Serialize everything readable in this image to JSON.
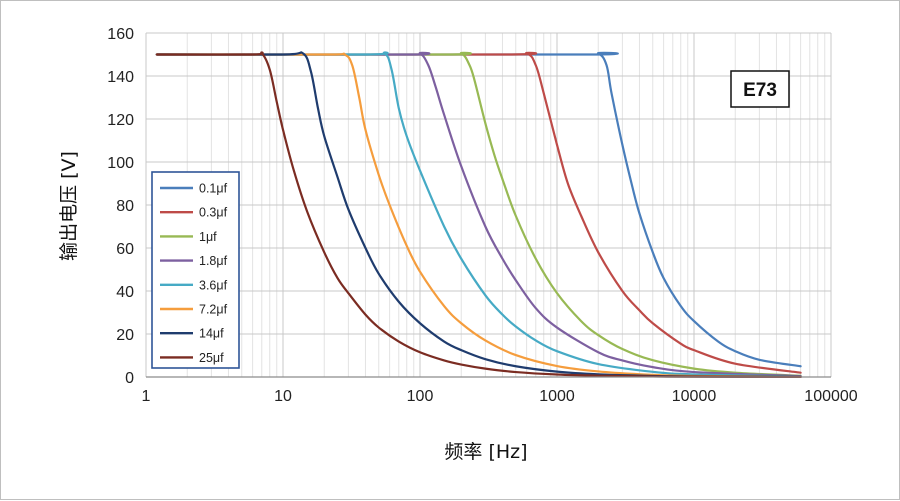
{
  "chart_data": {
    "type": "line",
    "title": "",
    "badge": "E73",
    "xlabel": "频率 [Hz]",
    "ylabel": "输出电压 [V]",
    "xscale": "log",
    "xlim": [
      1,
      100000
    ],
    "ylim": [
      0,
      160
    ],
    "xticks": [
      "1",
      "10",
      "100",
      "1000",
      "10000",
      "100000"
    ],
    "yticks": [
      "0",
      "20",
      "40",
      "60",
      "80",
      "100",
      "120",
      "140",
      "160"
    ],
    "grid": true,
    "legend_position": "left",
    "series": [
      {
        "name": "0.1μf",
        "color": "#4a7ebb",
        "x": [
          1.2,
          1500,
          2000,
          2300,
          2500,
          3000,
          3500,
          4000,
          5000,
          6000,
          8000,
          10000,
          15000,
          20000,
          30000,
          60000
        ],
        "y": [
          150,
          150,
          150.5,
          145,
          132,
          108,
          90,
          76,
          58,
          46,
          33,
          26,
          16.5,
          12,
          8,
          5
        ]
      },
      {
        "name": "0.3μf",
        "color": "#be4b48",
        "x": [
          1.2,
          400,
          600,
          700,
          800,
          1000,
          1200,
          1500,
          2000,
          3000,
          4000,
          5000,
          8000,
          10000,
          20000,
          60000
        ],
        "y": [
          150,
          150,
          150.5,
          145,
          132,
          108,
          90,
          75,
          58,
          40,
          31,
          25,
          15.5,
          12.5,
          6.2,
          2
        ]
      },
      {
        "name": "1μf",
        "color": "#98b954",
        "x": [
          1.2,
          150,
          200,
          230,
          250,
          300,
          350,
          400,
          500,
          700,
          1000,
          1500,
          2000,
          3000,
          5000,
          10000,
          20000,
          60000
        ],
        "y": [
          150,
          150,
          150.5,
          145,
          138,
          118,
          103,
          92,
          75,
          55,
          39,
          26,
          19.5,
          13,
          7.8,
          3.9,
          2,
          0.6
        ]
      },
      {
        "name": "1.8μf",
        "color": "#7d60a0",
        "x": [
          1.2,
          80,
          100,
          115,
          130,
          150,
          200,
          300,
          400,
          500,
          700,
          1000,
          2000,
          3000,
          5000,
          10000,
          60000
        ],
        "y": [
          150,
          150,
          150.5,
          145,
          135,
          122,
          98,
          70,
          55,
          45,
          32,
          23,
          11.5,
          7.7,
          4.6,
          2.3,
          0.4
        ]
      },
      {
        "name": "3.6μf",
        "color": "#46aac5",
        "x": [
          1.2,
          40,
          55,
          62,
          70,
          80,
          100,
          150,
          200,
          300,
          400,
          500,
          700,
          1000,
          2000,
          5000,
          10000,
          60000
        ],
        "y": [
          150,
          150,
          150.5,
          143,
          125,
          112,
          96,
          70,
          55,
          38,
          29,
          23.5,
          17,
          12,
          6,
          2.4,
          1.2,
          0.2
        ]
      },
      {
        "name": "7.2μf",
        "color": "#f59d3d",
        "x": [
          1.2,
          20,
          28,
          32,
          36,
          40,
          50,
          60,
          80,
          100,
          150,
          200,
          300,
          500,
          1000,
          2000,
          5000,
          10000,
          60000
        ],
        "y": [
          150,
          150,
          150,
          145,
          130,
          115,
          94,
          80,
          61,
          49,
          33,
          25,
          17,
          10.2,
          5.1,
          2.6,
          1,
          0.5,
          0.1
        ]
      },
      {
        "name": "14μf",
        "color": "#1f3c6e",
        "x": [
          1.2,
          10,
          14,
          16,
          18,
          20,
          25,
          30,
          40,
          50,
          70,
          100,
          150,
          200,
          300,
          500,
          1000,
          2000,
          5000,
          10000,
          60000
        ],
        "y": [
          150,
          150,
          150.5,
          142,
          125,
          112,
          93,
          78,
          60,
          48,
          35,
          25,
          16.5,
          12.5,
          8.3,
          5,
          2.5,
          1.25,
          0.5,
          0.25,
          0.05
        ]
      },
      {
        "name": "25μf",
        "color": "#7b2c22",
        "x": [
          1.2,
          6,
          7,
          8,
          9,
          10,
          12,
          15,
          20,
          25,
          30,
          40,
          50,
          70,
          100,
          150,
          200,
          300,
          500,
          1000,
          2000,
          5000,
          10000,
          60000
        ],
        "y": [
          150,
          150,
          150.5,
          143,
          128,
          115,
          96,
          77,
          58,
          46,
          39,
          29,
          23,
          16.5,
          11.5,
          7.7,
          5.8,
          3.9,
          2.3,
          1.15,
          0.6,
          0.25,
          0.12,
          0.03
        ]
      }
    ]
  }
}
